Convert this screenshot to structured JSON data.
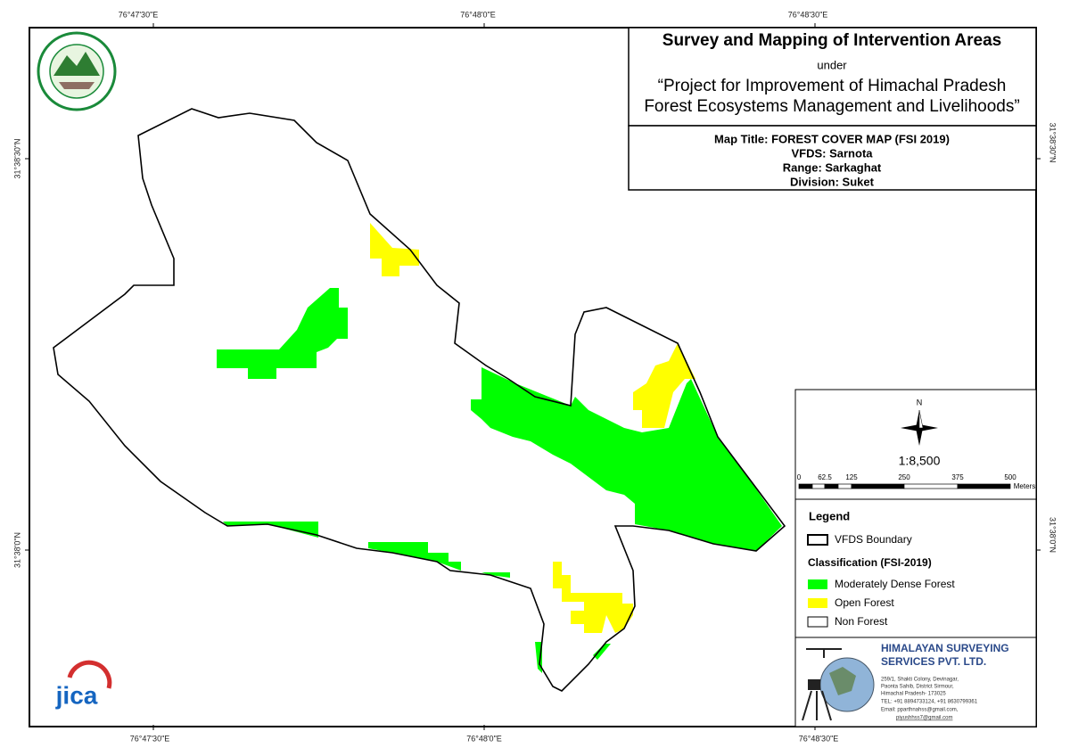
{
  "coordinates": {
    "top": [
      "76°47'30\"E",
      "76°48'0\"E",
      "76°48'30\"E"
    ],
    "bottom": [
      "76°47'30\"E",
      "76°48'0\"E",
      "76°48'30\"E"
    ],
    "left": [
      "31°38'30\"N",
      "31°38'0\"N"
    ],
    "right": [
      "31°38'30\"N",
      "31°38'0\"N"
    ]
  },
  "header": {
    "title": "Survey and Mapping of Intervention Areas",
    "connector": "under",
    "project_line1": "“Project for Improvement of Himachal Pradesh",
    "project_line2": "Forest Ecosystems Management and Livelihoods”"
  },
  "map_info": {
    "map_title": "Map Title: FOREST COVER MAP (FSI 2019)",
    "vfds": "VFDS: Sarnota",
    "range": "Range: Sarkaghat",
    "division": "Division: Suket"
  },
  "north": "N",
  "scale": {
    "ratio": "1:8,500",
    "labels": [
      0,
      62.5,
      125,
      250,
      375,
      500
    ],
    "unit": "Meters"
  },
  "legend": {
    "title": "Legend",
    "boundary": "VFDS Boundary",
    "classification": "Classification (FSI-2019)",
    "items": [
      "Moderately Dense Forest",
      "Open Forest",
      "Non Forest"
    ]
  },
  "company": {
    "name_line1": "HIMALAYAN SURVEYING",
    "name_line2": "SERVICES PVT. LTD.",
    "address": [
      "259/1, Shakti Colony, Devinagar,",
      "Paonta Sahib, District Sirmour,",
      "Himachal Pradesh- 173025",
      "TEL: +91 8894733124, +91 8630799361",
      "Email: pparthnahss@gmail.com,",
      "piyushhss7@gmail.com"
    ]
  },
  "jica": "jica"
}
